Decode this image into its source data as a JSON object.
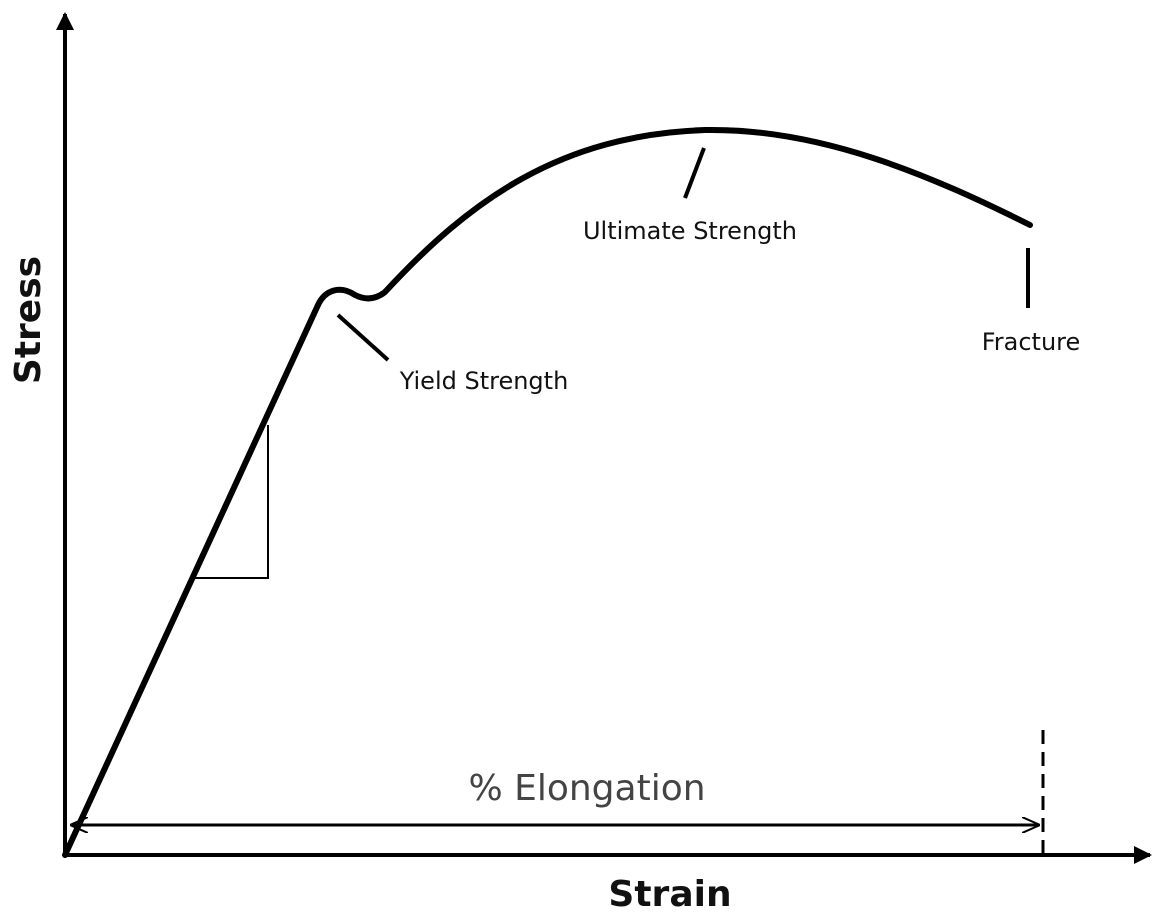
{
  "axes": {
    "x_label": "Strain",
    "y_label": "Stress"
  },
  "annotations": {
    "ultimate": "Ultimate Strength",
    "yield": "Yield Strength",
    "fracture": "Fracture",
    "elongation": "% Elongation"
  }
}
